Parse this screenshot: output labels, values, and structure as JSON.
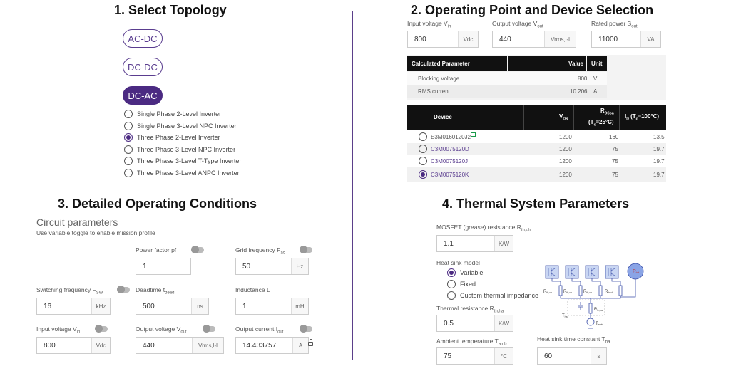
{
  "sections": {
    "s1": "1. Select Topology",
    "s2": "2. Operating Point and Device Selection",
    "s3": "3. Detailed Operating Conditions",
    "s4": "4. Thermal System Parameters"
  },
  "topology": {
    "buttons": [
      "AC-DC",
      "DC-DC",
      "DC-AC"
    ],
    "selected_button": "DC-AC",
    "options": [
      "Single Phase 2-Level Inverter",
      "Single Phase 3-Level NPC Inverter",
      "Three Phase 2-Level Inverter",
      "Three Phase 3-Level NPC Inverter",
      "Three Phase 3-Level T-Type Inverter",
      "Three Phase 3-Level ANPC Inverter"
    ],
    "selected_option": "Three Phase 2-Level Inverter"
  },
  "operating_point": {
    "vin_label": "Input voltage V",
    "vin_sub": "in",
    "vin_value": "800",
    "vin_unit": "Vdc",
    "vout_label": "Output voltage V",
    "vout_sub": "out",
    "vout_value": "440",
    "vout_unit": "Vrms,l-l",
    "sout_label": "Rated power S",
    "sout_sub": "out",
    "sout_value": "11000",
    "sout_unit": "VA"
  },
  "calc_table": {
    "headers": [
      "Calculated Parameter",
      "Value",
      "Unit"
    ],
    "rows": [
      {
        "param": "Blocking voltage",
        "value": "800",
        "unit": "V"
      },
      {
        "param": "RMS current",
        "value": "10.206",
        "unit": "A"
      }
    ]
  },
  "device_table": {
    "headers": {
      "device": "Device",
      "vds": "V",
      "vds_sub": "DS",
      "rdson": "R",
      "rdson_sub": "DSon",
      "rdson_cond": "(T",
      "rdson_cond_sub": "c",
      "rdson_cond_end": "=25°C)",
      "id": "I",
      "id_sub": "D",
      "id_cond": "(T",
      "id_cond_sub": "c",
      "id_cond_end": "=100°C)"
    },
    "rows": [
      {
        "device": "E3M0160120J2",
        "vds": "1200",
        "rdson": "160",
        "id": "13.5",
        "selected": false
      },
      {
        "device": "C3M0075120D",
        "vds": "1200",
        "rdson": "75",
        "id": "19.7",
        "selected": false
      },
      {
        "device": "C3M0075120J",
        "vds": "1200",
        "rdson": "75",
        "id": "19.7",
        "selected": false
      },
      {
        "device": "C3M0075120K",
        "vds": "1200",
        "rdson": "75",
        "id": "19.7",
        "selected": true
      }
    ]
  },
  "detailed": {
    "title": "Circuit parameters",
    "subtitle": "Use variable toggle to enable mission profile",
    "pf": {
      "label": "Power factor pf",
      "value": "1"
    },
    "fac": {
      "label": "Grid frequency F",
      "sub": "ac",
      "value": "50",
      "unit": "Hz"
    },
    "fsw": {
      "label": "Switching frequency F",
      "sub": "SW",
      "value": "16",
      "unit": "kHz"
    },
    "tdead": {
      "label": "Deadtime t",
      "sub": "dead",
      "value": "500",
      "unit": "ns"
    },
    "ind": {
      "label": "Inductance L",
      "value": "1",
      "unit": "mH"
    },
    "vin": {
      "label": "Input voltage V",
      "sub": "in",
      "value": "800",
      "unit": "Vdc"
    },
    "vout": {
      "label": "Output voltage V",
      "sub": "out",
      "value": "440",
      "unit": "Vrms,l-l"
    },
    "iout": {
      "label": "Output current I",
      "sub": "out",
      "value": "14.433757",
      "unit": "A"
    }
  },
  "thermal": {
    "rthch": {
      "label": "MOSFET (grease) resistance R",
      "sub": "th,ch",
      "value": "1.1",
      "unit": "K/W"
    },
    "heatsink_label": "Heat sink model",
    "heatsink_options": [
      "Variable",
      "Fixed",
      "Custom thermal impedance"
    ],
    "heatsink_selected": "Variable",
    "rthha": {
      "label": "Thermal resistance R",
      "sub": "th,ha",
      "value": "0.5",
      "unit": "K/W"
    },
    "tamb": {
      "label": "Ambient temperature T",
      "sub": "amb",
      "value": "75",
      "unit": "°C"
    },
    "tha": {
      "label": "Heat sink time constant T",
      "sub": "ha",
      "value": "60",
      "unit": "s"
    },
    "diagram": {
      "rthch": "R",
      "rthch_sub": "th,ch",
      "rthha": "R",
      "rthha_sub": "th,ha",
      "tha": "T",
      "tha_sub": "ha",
      "tamb": "T",
      "tamb_sub": "amb",
      "p": "P",
      "p_sub": "tot"
    }
  },
  "colors": {
    "accent": "#4b2a82",
    "divider": "#5b3f8a",
    "header": "#111111"
  }
}
